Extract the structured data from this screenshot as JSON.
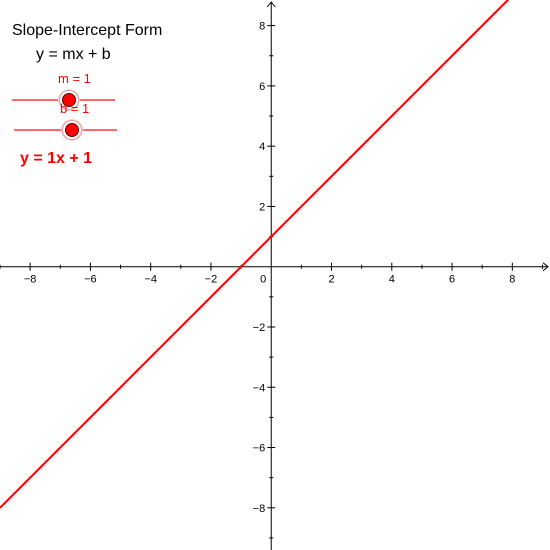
{
  "panel": {
    "title": "Slope-Intercept Form",
    "formula": "y = mx + b",
    "slider_m": {
      "label": "m = 1",
      "value": 1
    },
    "slider_b": {
      "label": "b = 1",
      "value": 1
    },
    "equation": "y = 1x + 1"
  },
  "graph": {
    "x_range": [
      -9,
      9.25
    ],
    "y_range": [
      -9.4,
      8.85
    ],
    "x_ticks": [
      "−8",
      "−6",
      "−4",
      "−2",
      "0",
      "2",
      "4",
      "6",
      "8"
    ],
    "y_ticks": [
      "8",
      "6",
      "4",
      "2",
      "−2",
      "−4",
      "−6",
      "−8"
    ],
    "line": {
      "slope": 1,
      "intercept": 1,
      "color": "#ff0000"
    },
    "axis_color": "#000000"
  }
}
